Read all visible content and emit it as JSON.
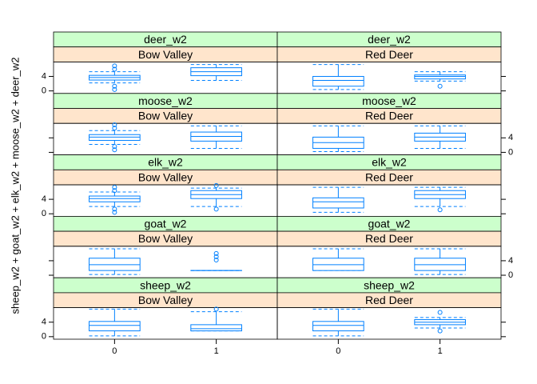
{
  "chart_data": {
    "type": "box",
    "ylabel": "sheep_w2 + goat_w2 + elk_w2 + moose_w2 + deer_w2",
    "categories": [
      "0",
      "1"
    ],
    "xlim": [
      -0.6,
      1.6
    ],
    "ylim": [
      -0.7,
      8
    ],
    "yticks": [
      0,
      4
    ],
    "color": "#0080ff",
    "strip_colors": [
      "#ccffcc",
      "#ffe5cc"
    ],
    "rows": [
      {
        "ytick_side": "left",
        "panels": [
          {
            "strips": [
              "deer_w2",
              "Bow Valley"
            ],
            "boxes": [
              {
                "min": 2.2,
                "q1": 3.0,
                "median": 3.7,
                "q3": 4.3,
                "max": 5.3,
                "outliers": [
                  6.9,
                  6.0,
                  1.3,
                  0.4
                ]
              },
              {
                "min": 2.9,
                "q1": 4.2,
                "median": 5.3,
                "q3": 6.4,
                "max": 7.3,
                "outliers": []
              }
            ]
          },
          {
            "strips": [
              "deer_w2",
              "Red Deer"
            ],
            "boxes": [
              {
                "min": 0.4,
                "q1": 1.3,
                "median": 2.9,
                "q3": 4.0,
                "max": 7.3,
                "outliers": []
              },
              {
                "min": 2.7,
                "q1": 3.3,
                "median": 4.0,
                "q3": 4.4,
                "max": 5.3,
                "outliers": [
                  1.3
                ]
              }
            ]
          }
        ]
      },
      {
        "ytick_side": "right",
        "panels": [
          {
            "strips": [
              "moose_w2",
              "Bow Valley"
            ],
            "boxes": [
              {
                "min": 2.2,
                "q1": 3.3,
                "median": 4.2,
                "q3": 4.9,
                "max": 6.0,
                "outliers": [
                  7.6,
                  6.7,
                  1.6,
                  0.7
                ]
              },
              {
                "min": 1.1,
                "q1": 3.1,
                "median": 4.4,
                "q3": 5.6,
                "max": 7.3,
                "outliers": []
              }
            ]
          },
          {
            "strips": [
              "moose_w2",
              "Red Deer"
            ],
            "boxes": [
              {
                "min": 0.2,
                "q1": 1.1,
                "median": 2.7,
                "q3": 4.2,
                "max": 7.3,
                "outliers": []
              },
              {
                "min": 1.1,
                "q1": 3.1,
                "median": 4.2,
                "q3": 5.3,
                "max": 7.3,
                "outliers": []
              }
            ]
          }
        ]
      },
      {
        "ytick_side": "left",
        "panels": [
          {
            "strips": [
              "elk_w2",
              "Bow Valley"
            ],
            "boxes": [
              {
                "min": 2.0,
                "q1": 3.3,
                "median": 4.2,
                "q3": 4.9,
                "max": 6.0,
                "outliers": [
                  7.3,
                  6.4,
                  1.3,
                  0.4
                ]
              },
              {
                "min": 2.0,
                "q1": 4.2,
                "median": 5.3,
                "q3": 6.4,
                "max": 7.1,
                "outliers": [
                  7.8,
                  1.3
                ]
              }
            ]
          },
          {
            "strips": [
              "elk_w2",
              "Red Deer"
            ],
            "boxes": [
              {
                "min": 0.4,
                "q1": 1.6,
                "median": 3.3,
                "q3": 4.4,
                "max": 7.3,
                "outliers": []
              },
              {
                "min": 2.0,
                "q1": 4.2,
                "median": 5.3,
                "q3": 6.4,
                "max": 7.3,
                "outliers": [
                  1.1
                ]
              }
            ]
          }
        ]
      },
      {
        "ytick_side": "right",
        "panels": [
          {
            "strips": [
              "goat_w2",
              "Bow Valley"
            ],
            "boxes": [
              {
                "min": 0.2,
                "q1": 1.3,
                "median": 2.9,
                "q3": 4.7,
                "max": 7.3,
                "outliers": []
              },
              {
                "min": 1.3,
                "q1": 1.3,
                "median": 1.3,
                "q3": 1.3,
                "max": 1.3,
                "outliers": [
                  6.0,
                  5.1,
                  4.2
                ]
              }
            ]
          },
          {
            "strips": [
              "goat_w2",
              "Red Deer"
            ],
            "boxes": [
              {
                "min": 1.3,
                "q1": 1.3,
                "median": 2.9,
                "q3": 4.7,
                "max": 7.3,
                "outliers": []
              },
              {
                "min": 0.2,
                "q1": 1.3,
                "median": 2.9,
                "q3": 4.7,
                "max": 7.3,
                "outliers": []
              }
            ]
          }
        ]
      },
      {
        "ytick_side": "left",
        "panels": [
          {
            "strips": [
              "sheep_w2",
              "Bow Valley"
            ],
            "boxes": [
              {
                "min": 0.2,
                "q1": 1.6,
                "median": 3.1,
                "q3": 4.2,
                "max": 7.6,
                "outliers": []
              },
              {
                "min": 1.6,
                "q1": 1.6,
                "median": 2.2,
                "q3": 3.3,
                "max": 6.9,
                "outliers": [
                  7.6
                ]
              }
            ]
          },
          {
            "strips": [
              "sheep_w2",
              "Red Deer"
            ],
            "boxes": [
              {
                "min": 0.2,
                "q1": 1.6,
                "median": 3.1,
                "q3": 4.2,
                "max": 7.6,
                "outliers": []
              },
              {
                "min": 2.4,
                "q1": 3.3,
                "median": 4.0,
                "q3": 4.7,
                "max": 5.3,
                "outliers": [
                  6.7,
                  1.6
                ]
              }
            ]
          }
        ]
      }
    ]
  }
}
